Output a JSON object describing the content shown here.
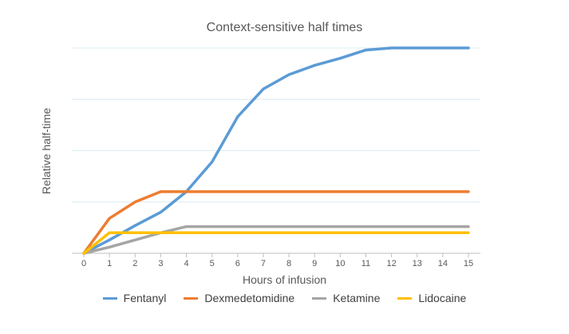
{
  "chart_data": {
    "type": "line",
    "title": "Context-sensitive half times",
    "xlabel": "Hours of infusion",
    "ylabel": "Relative half-time",
    "x": [
      0,
      1,
      2,
      3,
      4,
      5,
      6,
      7,
      8,
      9,
      10,
      11,
      12,
      13,
      14,
      15
    ],
    "xlim": [
      0,
      15
    ],
    "ylim": [
      0,
      20
    ],
    "y_gridlines": [
      5,
      10,
      15,
      20
    ],
    "y_tick_labels_shown": false,
    "grid": true,
    "legend_position": "bottom",
    "series": [
      {
        "name": "Fentanyl",
        "color": "#5B9BD5",
        "values": [
          0,
          1.3,
          2.7,
          4.0,
          6.0,
          8.9,
          13.3,
          16.0,
          17.4,
          18.3,
          19.0,
          19.8,
          20.0,
          20.0,
          20.0,
          20.0
        ]
      },
      {
        "name": "Dexmedetomidine",
        "color": "#ED7D31",
        "values": [
          0,
          3.4,
          5.0,
          6.0,
          6.0,
          6.0,
          6.0,
          6.0,
          6.0,
          6.0,
          6.0,
          6.0,
          6.0,
          6.0,
          6.0,
          6.0
        ]
      },
      {
        "name": "Ketamine",
        "color": "#A5A5A5",
        "values": [
          0,
          0.6,
          1.3,
          2.0,
          2.6,
          2.6,
          2.6,
          2.6,
          2.6,
          2.6,
          2.6,
          2.6,
          2.6,
          2.6,
          2.6,
          2.6
        ]
      },
      {
        "name": "Lidocaine",
        "color": "#FFC000",
        "values": [
          0,
          2.0,
          2.0,
          2.0,
          2.0,
          2.0,
          2.0,
          2.0,
          2.0,
          2.0,
          2.0,
          2.0,
          2.0,
          2.0,
          2.0,
          2.0
        ]
      }
    ],
    "axis_color": "#BFBFBF",
    "grid_color": "#D9ECF2"
  }
}
